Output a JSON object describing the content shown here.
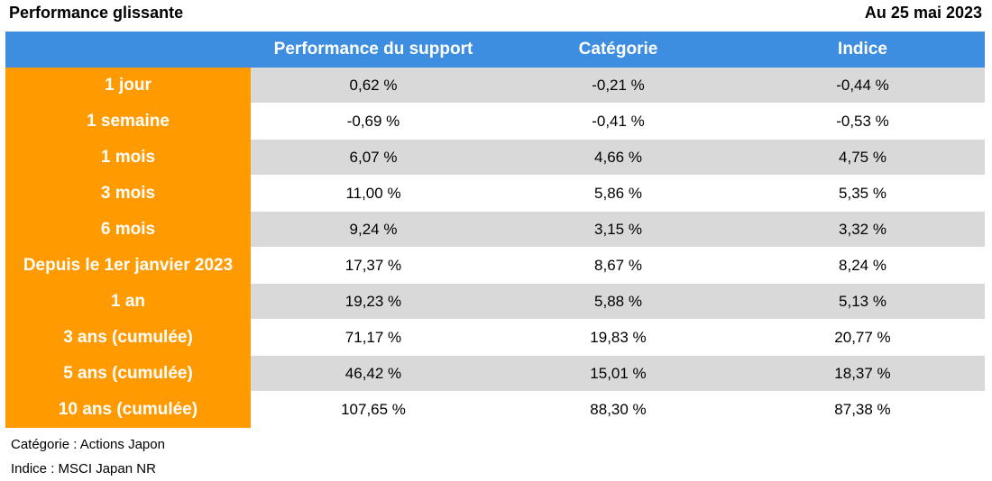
{
  "header": {
    "title": "Performance glissante",
    "date": "Au 25 mai 2023"
  },
  "table": {
    "columns": [
      "",
      "Performance du support",
      "Catégorie",
      "Indice"
    ],
    "rows": [
      {
        "label": "1 jour",
        "support": "0,62 %",
        "categorie": "-0,21 %",
        "indice": "-0,44 %"
      },
      {
        "label": "1 semaine",
        "support": "-0,69 %",
        "categorie": "-0,41 %",
        "indice": "-0,53 %"
      },
      {
        "label": "1 mois",
        "support": "6,07 %",
        "categorie": "4,66 %",
        "indice": "4,75 %"
      },
      {
        "label": "3 mois",
        "support": "11,00 %",
        "categorie": "5,86 %",
        "indice": "5,35 %"
      },
      {
        "label": "6 mois",
        "support": "9,24 %",
        "categorie": "3,15 %",
        "indice": "3,32 %"
      },
      {
        "label": "Depuis le 1er janvier 2023",
        "support": "17,37 %",
        "categorie": "8,67 %",
        "indice": "8,24 %"
      },
      {
        "label": "1 an",
        "support": "19,23 %",
        "categorie": "5,88 %",
        "indice": "5,13 %"
      },
      {
        "label": "3 ans (cumulée)",
        "support": "71,17 %",
        "categorie": "19,83 %",
        "indice": "20,77 %"
      },
      {
        "label": "5 ans (cumulée)",
        "support": "46,42 %",
        "categorie": "15,01 %",
        "indice": "18,37 %"
      },
      {
        "label": "10 ans (cumulée)",
        "support": "107,65 %",
        "categorie": "88,30 %",
        "indice": "87,38 %"
      }
    ]
  },
  "notes": {
    "categorie": "Catégorie : Actions Japon",
    "indice": "Indice : MSCI Japan NR"
  },
  "colors": {
    "header_bg": "#3d8ee0",
    "label_bg": "#ff9a00",
    "row_shade": "#d9d9d9"
  }
}
